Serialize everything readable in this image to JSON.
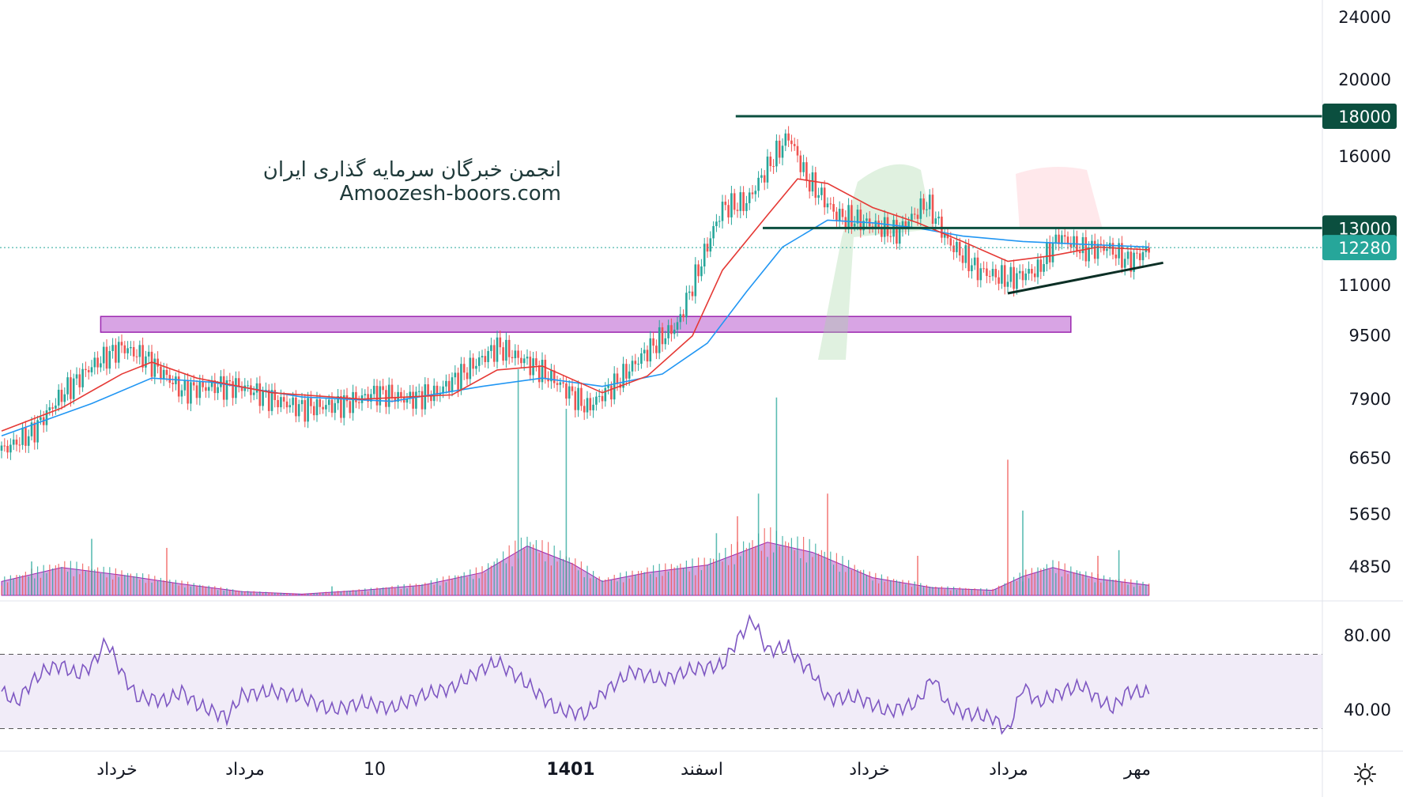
{
  "watermark": {
    "line1": "انجمن خبرگان سرمایه گذاری ایران",
    "line2": "Amoozesh-boors.com"
  },
  "colors": {
    "up": "#26a69a",
    "down": "#ef5350",
    "ma_fast": "#e53935",
    "ma_slow": "#2196f3",
    "level_line": "#0b4f3f",
    "zone": "#c77dd8",
    "volume_area": "#b45fc8",
    "rsi_line": "#7e57c2",
    "last_price_bg": "#26a69a"
  },
  "settings_icon": "gear-icon",
  "chart_data": {
    "type": "candlestick",
    "price_axis": {
      "scale": "log",
      "ticks": [
        24000,
        20000,
        16000,
        11000,
        9500,
        7900,
        6650,
        5650,
        4850
      ],
      "labels": [
        "24000",
        "20000",
        "16000",
        "11000",
        "9500",
        "7900",
        "6650",
        "5650",
        "4850"
      ]
    },
    "time_axis": {
      "labels": [
        "خرداد",
        "مرداد",
        "10",
        "1401",
        "اسفند",
        "خرداد",
        "مرداد",
        "مهر"
      ],
      "emphasis": [
        false,
        false,
        false,
        true,
        false,
        false,
        false,
        false
      ]
    },
    "last_price": 12280,
    "last_price_label": "12280",
    "levels": [
      {
        "price": 18000,
        "label": "18000"
      },
      {
        "price": 13000,
        "label": "13000"
      }
    ],
    "resistance_zone": {
      "low": 9600,
      "high": 10050
    },
    "trendline": {
      "from_price": 10750,
      "to_price": 11750
    },
    "price_path": [
      [
        0,
        6800
      ],
      [
        10,
        7150
      ],
      [
        20,
        8000
      ],
      [
        30,
        8700
      ],
      [
        40,
        9200
      ],
      [
        48,
        8900
      ],
      [
        60,
        8100
      ],
      [
        70,
        8200
      ],
      [
        80,
        8200
      ],
      [
        90,
        7900
      ],
      [
        100,
        7700
      ],
      [
        115,
        7800
      ],
      [
        125,
        8050
      ],
      [
        135,
        7900
      ],
      [
        145,
        8050
      ],
      [
        155,
        8600
      ],
      [
        165,
        9200
      ],
      [
        175,
        8800
      ],
      [
        185,
        8300
      ],
      [
        195,
        7700
      ],
      [
        205,
        8300
      ],
      [
        215,
        9100
      ],
      [
        225,
        9800
      ],
      [
        232,
        11500
      ],
      [
        240,
        13800
      ],
      [
        248,
        14000
      ],
      [
        255,
        15500
      ],
      [
        262,
        17000
      ],
      [
        268,
        15000
      ],
      [
        278,
        13500
      ],
      [
        288,
        13200
      ],
      [
        298,
        12800
      ],
      [
        308,
        14000
      ],
      [
        315,
        12500
      ],
      [
        325,
        11500
      ],
      [
        335,
        11200
      ],
      [
        345,
        11500
      ],
      [
        352,
        12700
      ],
      [
        360,
        12200
      ],
      [
        368,
        12300
      ],
      [
        375,
        11800
      ],
      [
        382,
        12200
      ]
    ],
    "ma_fast": [
      [
        0,
        7200
      ],
      [
        20,
        7700
      ],
      [
        40,
        8500
      ],
      [
        50,
        8800
      ],
      [
        65,
        8400
      ],
      [
        90,
        8050
      ],
      [
        120,
        7900
      ],
      [
        150,
        8000
      ],
      [
        165,
        8600
      ],
      [
        180,
        8700
      ],
      [
        200,
        8050
      ],
      [
        215,
        8450
      ],
      [
        230,
        9500
      ],
      [
        240,
        11500
      ],
      [
        255,
        13500
      ],
      [
        265,
        15000
      ],
      [
        275,
        14800
      ],
      [
        290,
        13800
      ],
      [
        305,
        13200
      ],
      [
        320,
        12500
      ],
      [
        335,
        11800
      ],
      [
        350,
        12000
      ],
      [
        365,
        12300
      ],
      [
        382,
        12200
      ]
    ],
    "ma_slow": [
      [
        0,
        7100
      ],
      [
        30,
        7800
      ],
      [
        50,
        8400
      ],
      [
        70,
        8300
      ],
      [
        100,
        7950
      ],
      [
        130,
        7850
      ],
      [
        160,
        8200
      ],
      [
        180,
        8400
      ],
      [
        200,
        8200
      ],
      [
        220,
        8500
      ],
      [
        235,
        9300
      ],
      [
        248,
        10800
      ],
      [
        260,
        12300
      ],
      [
        275,
        13300
      ],
      [
        290,
        13200
      ],
      [
        305,
        13000
      ],
      [
        320,
        12700
      ],
      [
        340,
        12500
      ],
      [
        360,
        12400
      ],
      [
        382,
        12300
      ]
    ],
    "rsi": {
      "overbought": 70,
      "oversold": 30,
      "labels": [
        "80.00",
        "40.00"
      ],
      "label_values": [
        80,
        40
      ],
      "path": [
        [
          0,
          50
        ],
        [
          5,
          44
        ],
        [
          10,
          55
        ],
        [
          15,
          62
        ],
        [
          20,
          64
        ],
        [
          25,
          59
        ],
        [
          30,
          64
        ],
        [
          35,
          77
        ],
        [
          40,
          60
        ],
        [
          45,
          47
        ],
        [
          55,
          45
        ],
        [
          60,
          50
        ],
        [
          65,
          43
        ],
        [
          75,
          36
        ],
        [
          80,
          48
        ],
        [
          90,
          50
        ],
        [
          100,
          47
        ],
        [
          110,
          40
        ],
        [
          120,
          44
        ],
        [
          130,
          41
        ],
        [
          140,
          48
        ],
        [
          150,
          52
        ],
        [
          160,
          62
        ],
        [
          165,
          66
        ],
        [
          170,
          60
        ],
        [
          175,
          54
        ],
        [
          180,
          47
        ],
        [
          185,
          40
        ],
        [
          195,
          38
        ],
        [
          200,
          49
        ],
        [
          210,
          61
        ],
        [
          220,
          56
        ],
        [
          230,
          62
        ],
        [
          240,
          64
        ],
        [
          245,
          78
        ],
        [
          250,
          89
        ],
        [
          255,
          72
        ],
        [
          262,
          74
        ],
        [
          265,
          67
        ],
        [
          270,
          60
        ],
        [
          275,
          46
        ],
        [
          285,
          47
        ],
        [
          295,
          39
        ],
        [
          305,
          44
        ],
        [
          310,
          58
        ],
        [
          315,
          42
        ],
        [
          322,
          38
        ],
        [
          330,
          36
        ],
        [
          335,
          28
        ],
        [
          340,
          53
        ],
        [
          345,
          44
        ],
        [
          355,
          51
        ],
        [
          360,
          53
        ],
        [
          365,
          46
        ],
        [
          370,
          41
        ],
        [
          375,
          50
        ],
        [
          382,
          49
        ]
      ]
    },
    "volume": {
      "area_path": [
        [
          0,
          11
        ],
        [
          20,
          22
        ],
        [
          40,
          16
        ],
        [
          60,
          9
        ],
        [
          80,
          3
        ],
        [
          100,
          1
        ],
        [
          120,
          4
        ],
        [
          140,
          8
        ],
        [
          160,
          18
        ],
        [
          175,
          39
        ],
        [
          190,
          25
        ],
        [
          200,
          11
        ],
        [
          215,
          18
        ],
        [
          235,
          24
        ],
        [
          255,
          42
        ],
        [
          270,
          34
        ],
        [
          290,
          14
        ],
        [
          310,
          6
        ],
        [
          330,
          4
        ],
        [
          340,
          15
        ],
        [
          350,
          22
        ],
        [
          365,
          13
        ],
        [
          382,
          8
        ]
      ],
      "spikes": [
        [
          10,
          30
        ],
        [
          30,
          50
        ],
        [
          55,
          42
        ],
        [
          110,
          8
        ],
        [
          172,
          200
        ],
        [
          188,
          165
        ],
        [
          238,
          55
        ],
        [
          245,
          70
        ],
        [
          252,
          90
        ],
        [
          258,
          175
        ],
        [
          275,
          90
        ],
        [
          305,
          35
        ],
        [
          335,
          120
        ],
        [
          340,
          75
        ],
        [
          365,
          35
        ],
        [
          372,
          40
        ]
      ]
    },
    "grid": false
  }
}
